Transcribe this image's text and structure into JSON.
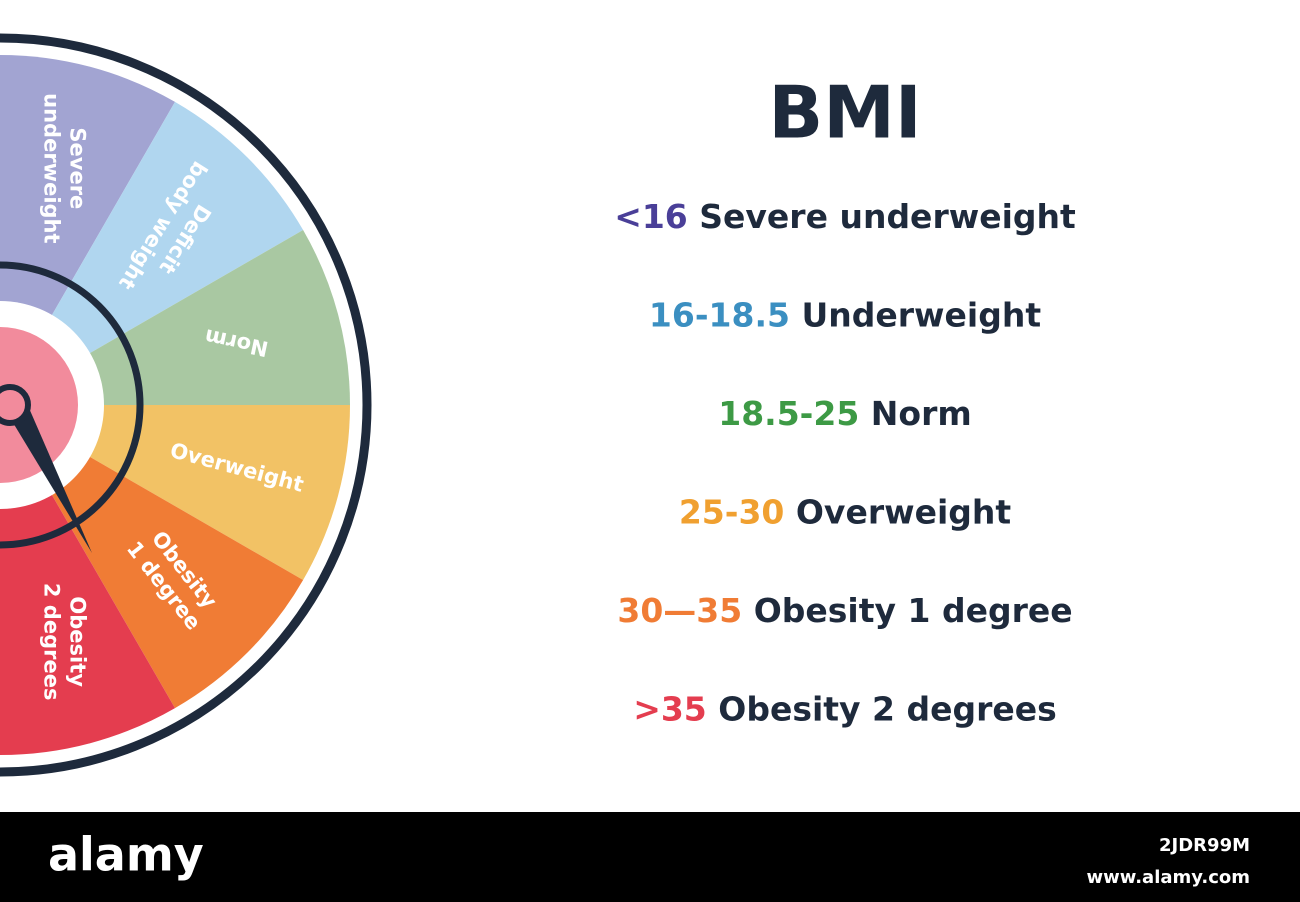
{
  "wheel": {
    "segments": [
      {
        "lines": [
          "Severe",
          "underweight"
        ],
        "color": "#a2a4d2"
      },
      {
        "lines": [
          "Deficit",
          "body weight"
        ],
        "color": "#b0d6ef"
      },
      {
        "lines": [
          "Norm"
        ],
        "color": "#a9c8a2"
      },
      {
        "lines": [
          "Overweight"
        ],
        "color": "#f2c265"
      },
      {
        "lines": [
          "Obesity",
          "1 degree"
        ],
        "color": "#f07c35"
      },
      {
        "lines": [
          "Obesity",
          "2 degrees"
        ],
        "color": "#e43d4f"
      }
    ]
  },
  "header": {
    "title": "BMI"
  },
  "legend": {
    "items": [
      {
        "range": "<16",
        "label": "Severe underweight",
        "color": "#4a3f98"
      },
      {
        "range": "16-18.5",
        "label": "Underweight",
        "color": "#3b8fc1"
      },
      {
        "range": "18.5-25",
        "label": "Norm",
        "color": "#3d9a45"
      },
      {
        "range": "25-30",
        "label": "Overweight",
        "color": "#f0a030"
      },
      {
        "range": "30—35",
        "label": "Obesity 1 degree",
        "color": "#f07c35"
      },
      {
        "range": ">35",
        "label": "Obesity 2 degrees",
        "color": "#e43d4f"
      }
    ]
  },
  "footer": {
    "brand": "alamy",
    "image_id": "2JDR99M",
    "url": "www.alamy.com"
  }
}
